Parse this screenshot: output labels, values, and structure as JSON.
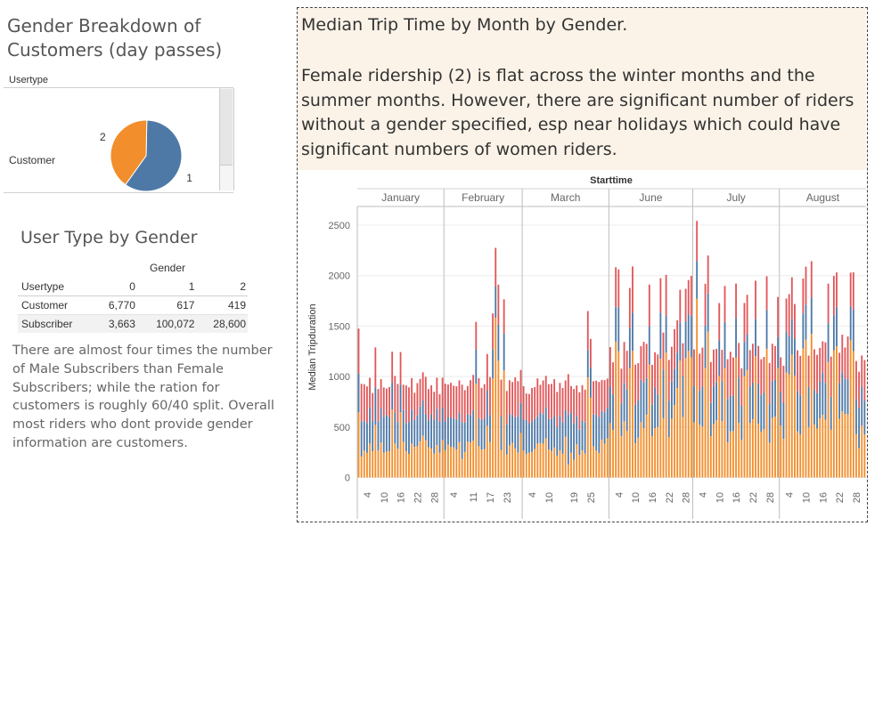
{
  "pie": {
    "title": "Gender Breakdown of Customers (day passes)",
    "column_header": "Usertype",
    "row_label": "Customer",
    "slices": [
      {
        "gender": "1",
        "label": "1",
        "value": 617,
        "color": "#4e79a7"
      },
      {
        "gender": "2",
        "label": "2",
        "value": 419,
        "color": "#f28e2b"
      }
    ]
  },
  "table": {
    "title": "User Type by Gender",
    "group_header": "Gender",
    "columns": [
      "Usertype",
      "0",
      "1",
      "2"
    ],
    "rows": [
      [
        "Customer",
        "6,770",
        "617",
        "419"
      ],
      [
        "Subscriber",
        "3,663",
        "100,072",
        "28,600"
      ]
    ]
  },
  "note": "There are almost four times the number of Male Subscribers than Female Subscribers; while the ration for customers is roughly 60/40 split.  Overall most riders who dont provide gender information are customers.",
  "main": {
    "title": "Median Trip Time by Month by Gender.",
    "description": "Female ridership  (2) is flat across the winter months and the summer months. However, there are significant number of riders without a gender specified, esp  near holidays which could have significant numbers of women riders."
  },
  "chart_data": {
    "type": "bar",
    "stacked": true,
    "top_header": "Starttime",
    "ylabel": "Median Tripduration",
    "ylim": [
      0,
      2600
    ],
    "yticks": [
      0,
      500,
      1000,
      1500,
      2000,
      2500
    ],
    "colors": {
      "0": "#4e79a7",
      "1": "#e15759",
      "2": "#f28e2b"
    },
    "months": [
      {
        "name": "January",
        "days": 31,
        "ticks": [
          "4",
          "10",
          "16",
          "22",
          "28"
        ],
        "values": [
          [
            385,
            445,
            645
          ],
          [
            349,
            371,
            208
          ],
          [
            296,
            361,
            267
          ],
          [
            296,
            361,
            245
          ],
          [
            357,
            295,
            336
          ],
          [
            299,
            278,
            260
          ],
          [
            372,
            396,
            521
          ],
          [
            285,
            324,
            267
          ],
          [
            341,
            287,
            346
          ],
          [
            357,
            289,
            246
          ],
          [
            365,
            262,
            255
          ],
          [
            338,
            298,
            261
          ],
          [
            265,
            307,
            674
          ],
          [
            306,
            363,
            337
          ],
          [
            264,
            378,
            285
          ],
          [
            271,
            325,
            647
          ],
          [
            316,
            251,
            352
          ],
          [
            279,
            373,
            260
          ],
          [
            313,
            346,
            234
          ],
          [
            337,
            312,
            336
          ],
          [
            265,
            272,
            303
          ],
          [
            307,
            319,
            309
          ],
          [
            345,
            274,
            358
          ],
          [
            348,
            279,
            415
          ],
          [
            259,
            370,
            368
          ],
          [
            265,
            311,
            300
          ],
          [
            339,
            288,
            286
          ],
          [
            336,
            277,
            236
          ],
          [
            359,
            308,
            322
          ],
          [
            304,
            274,
            247
          ],
          [
            321,
            296,
            372
          ]
        ]
      },
      {
        "name": "February",
        "days": 28,
        "ticks": [
          "4",
          "11",
          "17",
          "23"
        ],
        "values": [
          [
            286,
            373,
            270
          ],
          [
            274,
            321,
            326
          ],
          [
            293,
            343,
            302
          ],
          [
            290,
            320,
            299
          ],
          [
            297,
            329,
            277
          ],
          [
            290,
            323,
            349
          ],
          [
            365,
            370,
            185
          ],
          [
            292,
            320,
            253
          ],
          [
            268,
            282,
            357
          ],
          [
            272,
            345,
            347
          ],
          [
            303,
            349,
            364
          ],
          [
            335,
            276,
            931
          ],
          [
            280,
            395,
            309
          ],
          [
            293,
            318,
            276
          ],
          [
            305,
            338,
            282
          ],
          [
            353,
            358,
            512
          ],
          [
            268,
            377,
            350
          ],
          [
            290,
            355,
            981
          ],
          [
            312,
            380,
            1583
          ],
          [
            356,
            398,
            1157
          ],
          [
            334,
            365,
            270
          ],
          [
            363,
            340,
            1062
          ],
          [
            300,
            330,
            227
          ],
          [
            308,
            336,
            319
          ],
          [
            275,
            327,
            344
          ],
          [
            308,
            396,
            288
          ],
          [
            359,
            350,
            246
          ],
          [
            296,
            328,
            441
          ]
        ]
      },
      {
        "name": "March",
        "days": 31,
        "ticks": [
          "4",
          "10",
          "19",
          "25"
        ],
        "values": [
          [
            306,
            331,
            267
          ],
          [
            337,
            262,
            233
          ],
          [
            293,
            290,
            245
          ],
          [
            303,
            331,
            253
          ],
          [
            298,
            315,
            282
          ],
          [
            270,
            376,
            336
          ],
          [
            301,
            273,
            344
          ],
          [
            294,
            333,
            334
          ],
          [
            305,
            315,
            387
          ],
          [
            301,
            346,
            277
          ],
          [
            319,
            346,
            262
          ],
          [
            313,
            364,
            297
          ],
          [
            279,
            353,
            216
          ],
          [
            342,
            326,
            269
          ],
          [
            312,
            340,
            234
          ],
          [
            261,
            295,
            405
          ],
          [
            495,
            400,
            129
          ],
          [
            399,
            260,
            247
          ],
          [
            359,
            340,
            177
          ],
          [
            282,
            302,
            328
          ],
          [
            251,
            371,
            222
          ],
          [
            296,
            351,
            268
          ],
          [
            309,
            325,
            236
          ],
          [
            273,
            385,
            991
          ],
          [
            298,
            285,
            790
          ],
          [
            315,
            330,
            309
          ],
          [
            352,
            338,
            269
          ],
          [
            352,
            351,
            243
          ],
          [
            284,
            308,
            375
          ],
          [
            312,
            319,
            334
          ],
          [
            302,
            289,
            389
          ]
        ]
      },
      {
        "name": "June",
        "days": 30,
        "ticks": [
          "4",
          "10",
          "16",
          "22",
          "28"
        ],
        "values": [
          [
            362,
            393,
            537
          ],
          [
            355,
            317,
            469
          ],
          [
            344,
            392,
            1347
          ],
          [
            436,
            375,
            1250
          ],
          [
            325,
            344,
            409
          ],
          [
            379,
            407,
            557
          ],
          [
            408,
            384,
            463
          ],
          [
            392,
            401,
            1085
          ],
          [
            380,
            457,
            1254
          ],
          [
            380,
            399,
            339
          ],
          [
            372,
            367,
            394
          ],
          [
            419,
            334,
            548
          ],
          [
            453,
            402,
            489
          ],
          [
            362,
            340,
            622
          ],
          [
            379,
            413,
            1119
          ],
          [
            314,
            391,
            411
          ],
          [
            402,
            349,
            489
          ],
          [
            324,
            394,
            501
          ],
          [
            456,
            342,
            1177
          ],
          [
            486,
            366,
            584
          ],
          [
            367,
            404,
            1237
          ],
          [
            359,
            407,
            399
          ],
          [
            367,
            346,
            582
          ],
          [
            359,
            395,
            716
          ],
          [
            351,
            319,
            887
          ],
          [
            380,
            323,
            1157
          ],
          [
            406,
            325,
            599
          ],
          [
            364,
            323,
            1183
          ],
          [
            363,
            339,
            1254
          ],
          [
            413,
            397,
            1188
          ]
        ]
      },
      {
        "name": "July",
        "days": 31,
        "ticks": [
          "4",
          "10",
          "16",
          "22",
          "28"
        ],
        "values": [
          [
            359,
            364,
            546
          ],
          [
            374,
            396,
            1772
          ],
          [
            336,
            368,
            523
          ],
          [
            395,
            387,
            505
          ],
          [
            422,
            414,
            1083
          ],
          [
            377,
            378,
            1445
          ],
          [
            329,
            406,
            409
          ],
          [
            382,
            358,
            527
          ],
          [
            379,
            330,
            566
          ],
          [
            355,
            367,
            1006
          ],
          [
            400,
            306,
            559
          ],
          [
            458,
            358,
            1082
          ],
          [
            429,
            394,
            349
          ],
          [
            354,
            435,
            456
          ],
          [
            352,
            378,
            460
          ],
          [
            391,
            340,
            1190
          ],
          [
            449,
            342,
            542
          ],
          [
            336,
            371,
            374
          ],
          [
            339,
            386,
            1004
          ],
          [
            355,
            390,
            1065
          ],
          [
            363,
            360,
            539
          ],
          [
            361,
            386,
            578
          ],
          [
            369,
            379,
            1202
          ],
          [
            393,
            379,
            532
          ],
          [
            365,
            355,
            452
          ],
          [
            365,
            353,
            477
          ],
          [
            381,
            337,
            1276
          ],
          [
            382,
            407,
            345
          ],
          [
            363,
            372,
            590
          ],
          [
            364,
            336,
            602
          ],
          [
            307,
            397,
            1085
          ]
        ]
      },
      {
        "name": "August",
        "days": 31,
        "ticks": [
          "4",
          "10",
          "16",
          "22",
          "28"
        ],
        "values": [
          [
            333,
            344,
            514
          ],
          [
            358,
            366,
            383
          ],
          [
            404,
            328,
            1041
          ],
          [
            377,
            419,
            1021
          ],
          [
            350,
            416,
            1218
          ],
          [
            367,
            344,
            1008
          ],
          [
            402,
            402,
            456
          ],
          [
            392,
            389,
            425
          ],
          [
            345,
            348,
            1279
          ],
          [
            348,
            376,
            1365
          ],
          [
            401,
            308,
            499
          ],
          [
            359,
            361,
            1423
          ],
          [
            343,
            402,
            525
          ],
          [
            349,
            381,
            485
          ],
          [
            362,
            336,
            586
          ],
          [
            420,
            308,
            621
          ],
          [
            364,
            402,
            573
          ],
          [
            384,
            393,
            1144
          ],
          [
            327,
            398,
            473
          ],
          [
            345,
            391,
            1261
          ],
          [
            390,
            342,
            1300
          ],
          [
            353,
            301,
            582
          ],
          [
            387,
            373,
            655
          ],
          [
            352,
            306,
            630
          ],
          [
            346,
            427,
            624
          ],
          [
            337,
            334,
            1359
          ],
          [
            406,
            375,
            1252
          ],
          [
            346,
            379,
            429
          ],
          [
            402,
            357,
            289
          ],
          [
            385,
            310,
            514
          ],
          [
            334,
            402,
            428
          ]
        ]
      }
    ]
  }
}
